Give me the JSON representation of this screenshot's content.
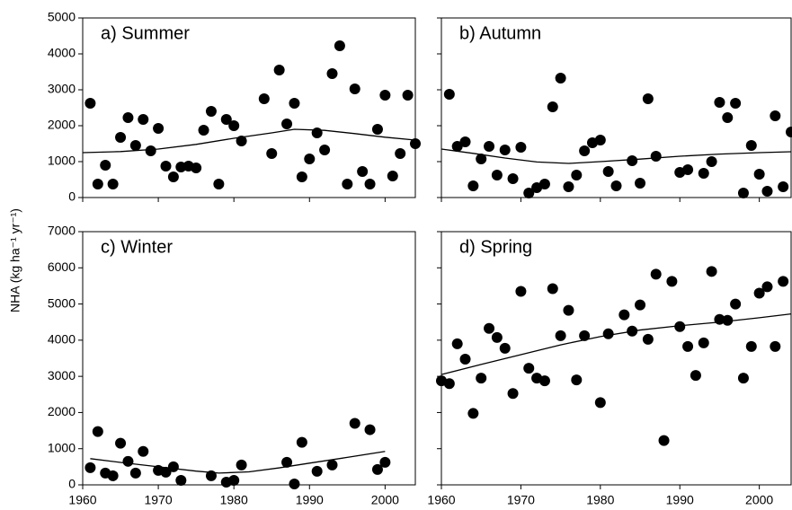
{
  "ylabel": "NHA (kg ha⁻¹ yr⁻¹)",
  "chart_data": [
    {
      "type": "scatter",
      "title": "a) Summer",
      "color": "#000000",
      "xlim": [
        1960,
        2004
      ],
      "xticks": [
        1960,
        1970,
        1980,
        1990,
        2000
      ],
      "xtick_labels": false,
      "ylim": [
        0,
        5000
      ],
      "yticks": [
        0,
        1000,
        2000,
        3000,
        4000,
        5000
      ],
      "ytick_labels": true,
      "x": [
        1961,
        1962,
        1963,
        1964,
        1965,
        1966,
        1967,
        1968,
        1969,
        1970,
        1971,
        1972,
        1973,
        1974,
        1975,
        1976,
        1977,
        1978,
        1979,
        1980,
        1981,
        1984,
        1985,
        1986,
        1987,
        1988,
        1989,
        1990,
        1991,
        1992,
        1993,
        1994,
        1995,
        1996,
        1997,
        1998,
        1999,
        2000,
        2001,
        2002,
        2003,
        2004
      ],
      "values": [
        2625,
        375,
        900,
        375,
        1675,
        2225,
        1450,
        2175,
        1300,
        1925,
        875,
        575,
        850,
        875,
        825,
        1875,
        2400,
        375,
        2175,
        2000,
        1575,
        2750,
        1225,
        3550,
        2050,
        2625,
        575,
        1075,
        1800,
        1325,
        3450,
        4225,
        375,
        3025,
        725,
        375,
        1900,
        2850,
        600,
        1225,
        2850,
        1500
      ],
      "trend": {
        "x": [
          1960,
          1965,
          1970,
          1975,
          1980,
          1985,
          1988,
          1992,
          1996,
          2000,
          2004
        ],
        "values": [
          1250,
          1280,
          1350,
          1480,
          1650,
          1800,
          1900,
          1870,
          1780,
          1680,
          1600
        ]
      }
    },
    {
      "type": "scatter",
      "title": "b) Autumn",
      "color": "#000000",
      "xlim": [
        1960,
        2004
      ],
      "xticks": [
        1960,
        1970,
        1980,
        1990,
        2000
      ],
      "xtick_labels": false,
      "ylim": [
        0,
        5000
      ],
      "yticks": [
        0,
        1000,
        2000,
        3000,
        4000,
        5000
      ],
      "ytick_labels": false,
      "x": [
        1961,
        1962,
        1963,
        1964,
        1965,
        1966,
        1967,
        1968,
        1969,
        1970,
        1971,
        1972,
        1973,
        1974,
        1975,
        1976,
        1977,
        1978,
        1979,
        1980,
        1981,
        1982,
        1984,
        1985,
        1986,
        1987,
        1990,
        1991,
        1993,
        1994,
        1995,
        1996,
        1997,
        1998,
        1999,
        2000,
        2001,
        2002,
        2003,
        2004
      ],
      "values": [
        2875,
        1425,
        1550,
        325,
        1075,
        1425,
        625,
        1325,
        525,
        1400,
        125,
        275,
        375,
        2525,
        3325,
        300,
        625,
        1300,
        1525,
        1600,
        725,
        325,
        1025,
        400,
        2750,
        1150,
        700,
        775,
        675,
        1000,
        2650,
        2225,
        2625,
        125,
        1450,
        650,
        175,
        2275,
        300,
        1825
      ],
      "trend": {
        "x": [
          1960,
          1964,
          1968,
          1972,
          1976,
          1980,
          1985,
          1990,
          1995,
          2000,
          2004
        ],
        "values": [
          1350,
          1230,
          1100,
          990,
          950,
          1000,
          1070,
          1150,
          1210,
          1250,
          1275
        ]
      }
    },
    {
      "type": "scatter",
      "title": "c) Winter",
      "color": "#000000",
      "xlim": [
        1960,
        2004
      ],
      "xticks": [
        1960,
        1970,
        1980,
        1990,
        2000
      ],
      "xtick_labels": true,
      "ylim": [
        0,
        7000
      ],
      "yticks": [
        0,
        1000,
        2000,
        3000,
        4000,
        5000,
        6000,
        7000
      ],
      "ytick_labels": true,
      "x": [
        1961,
        1962,
        1963,
        1964,
        1965,
        1966,
        1967,
        1968,
        1970,
        1971,
        1972,
        1973,
        1977,
        1979,
        1980,
        1981,
        1987,
        1988,
        1989,
        1991,
        1993,
        1996,
        1998,
        1999,
        2000
      ],
      "values": [
        475,
        1475,
        325,
        250,
        1150,
        650,
        325,
        925,
        400,
        350,
        500,
        125,
        250,
        75,
        125,
        550,
        625,
        25,
        1175,
        375,
        550,
        1700,
        1525,
        425,
        625
      ],
      "trend": {
        "x": [
          1961,
          1965,
          1970,
          1975,
          1978,
          1982,
          1986,
          1990,
          1995,
          2000
        ],
        "values": [
          725,
          620,
          500,
          380,
          325,
          360,
          470,
          600,
          760,
          925
        ]
      }
    },
    {
      "type": "scatter",
      "title": "d) Spring",
      "color": "#000000",
      "xlim": [
        1960,
        2004
      ],
      "xticks": [
        1960,
        1970,
        1980,
        1990,
        2000
      ],
      "xtick_labels": true,
      "ylim": [
        0,
        7000
      ],
      "yticks": [
        0,
        1000,
        2000,
        3000,
        4000,
        5000,
        6000,
        7000
      ],
      "ytick_labels": false,
      "x": [
        1960,
        1961,
        1962,
        1963,
        1964,
        1965,
        1966,
        1967,
        1968,
        1969,
        1970,
        1971,
        1972,
        1973,
        1974,
        1975,
        1976,
        1977,
        1978,
        1980,
        1981,
        1983,
        1984,
        1985,
        1986,
        1987,
        1988,
        1989,
        1990,
        1991,
        1992,
        1993,
        1994,
        1995,
        1996,
        1997,
        1998,
        1999,
        2000,
        2001,
        2002,
        2003
      ],
      "values": [
        2875,
        2800,
        3900,
        3475,
        1975,
        2950,
        4325,
        4075,
        3775,
        2525,
        5350,
        3225,
        2950,
        2875,
        5425,
        4125,
        4825,
        2900,
        4125,
        2275,
        4175,
        4700,
        4250,
        4975,
        4025,
        5825,
        1225,
        5625,
        4375,
        3825,
        3025,
        3925,
        5900,
        4575,
        4550,
        5000,
        2950,
        3825,
        5300,
        5475,
        3825,
        5625
      ],
      "trend": {
        "x": [
          1960,
          1965,
          1970,
          1975,
          1980,
          1985,
          1990,
          1995,
          2000,
          2004
        ],
        "values": [
          3050,
          3330,
          3600,
          3870,
          4100,
          4280,
          4400,
          4500,
          4620,
          4725
        ]
      }
    }
  ]
}
